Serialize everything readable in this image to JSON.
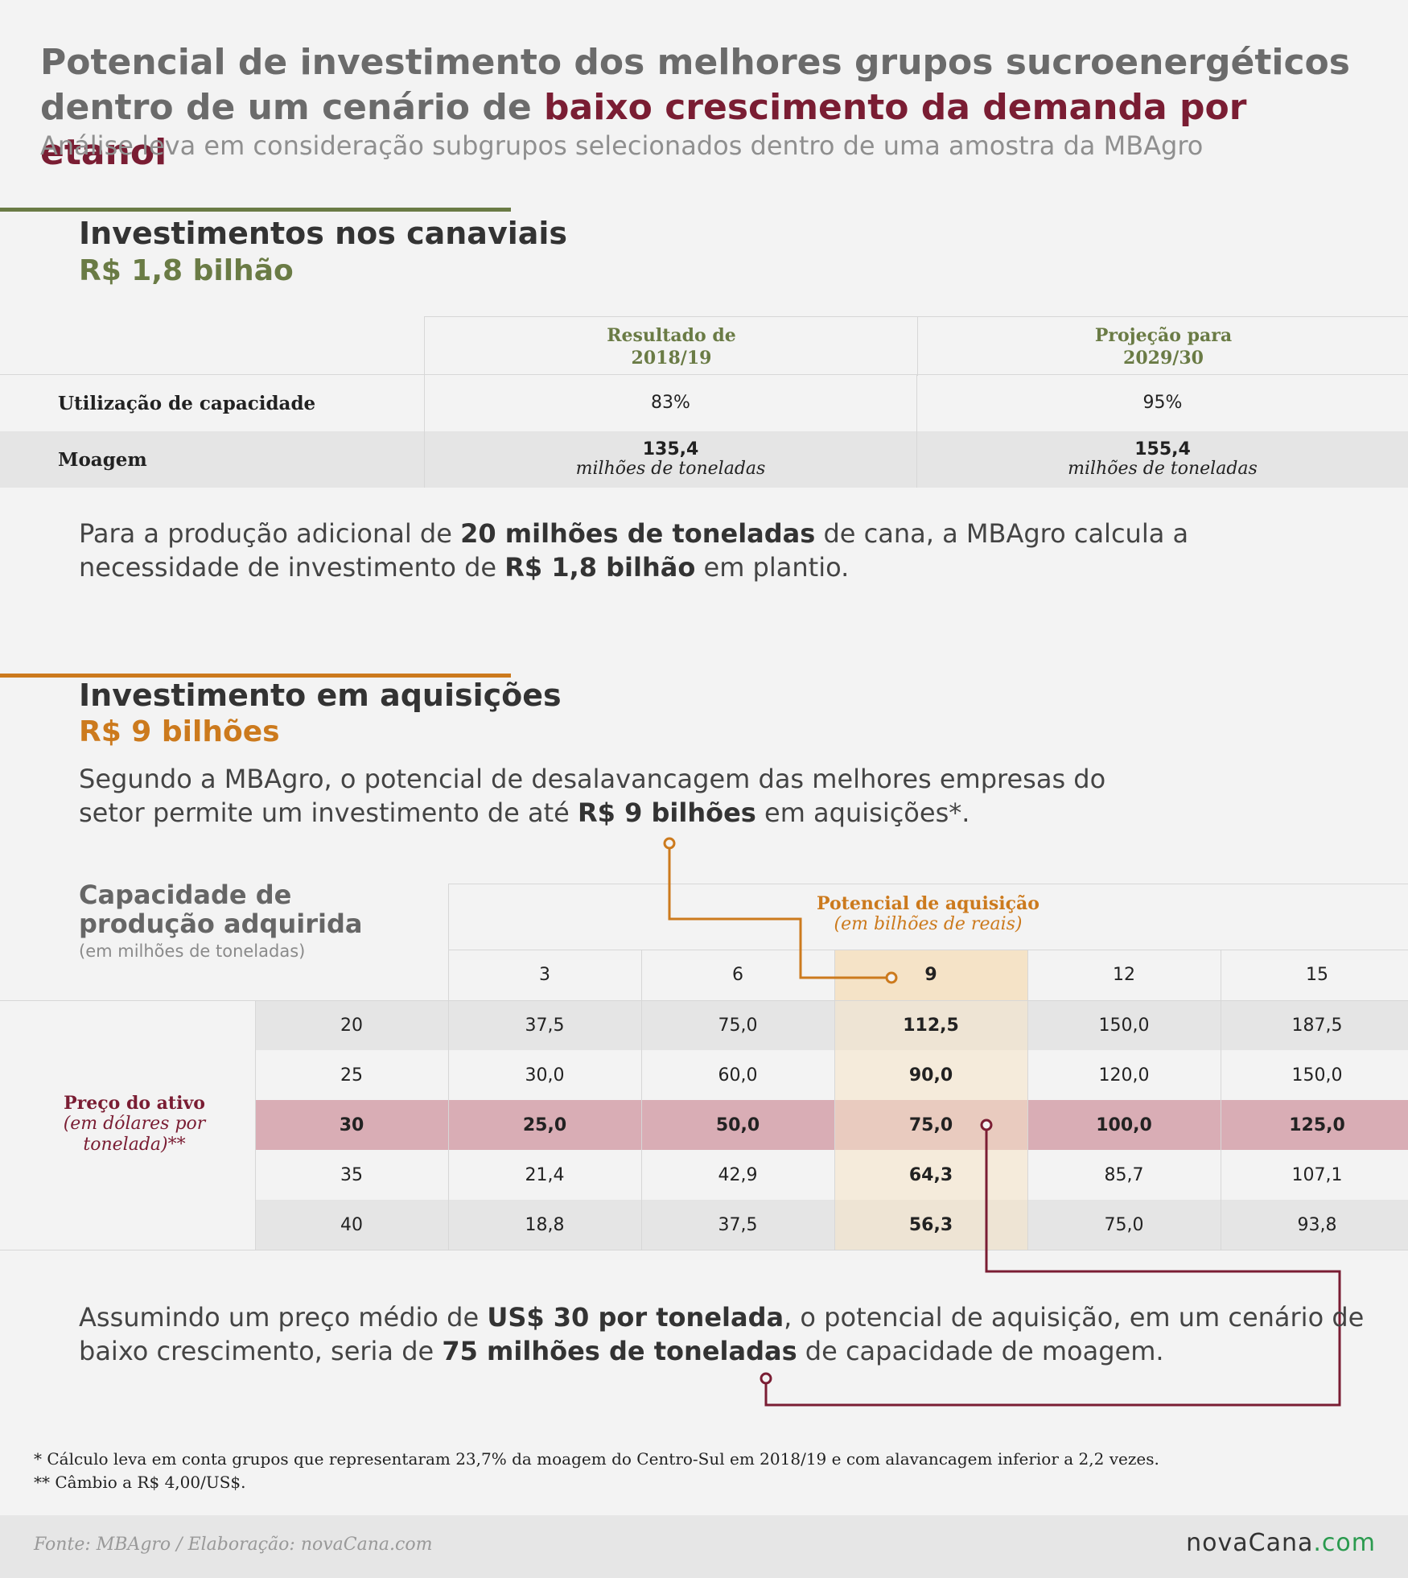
{
  "header": {
    "title_part1": "Potencial de investimento dos melhores grupos sucroenergéticos dentro de um cenário de ",
    "title_highlight": "baixo crescimento da demanda por etanol",
    "subtitle": "Análise leva em consideração subgrupos selecionados dentro de uma amostra da MBAgro"
  },
  "section1": {
    "heading": "Investimentos nos canaviais",
    "value": "R$ 1,8 bilhão",
    "table": {
      "col1": "Resultado de\n2018/19",
      "col2": "Projeção para\n2029/30",
      "row1": {
        "label": "Utilização de capacidade",
        "v1": "83%",
        "v2": "95%"
      },
      "row2": {
        "label": "Moagem",
        "v1": "135,4",
        "v2": "155,4",
        "unit": "milhões de toneladas"
      }
    },
    "paragraph": {
      "p1": "Para a produção adicional de ",
      "b1": "20 milhões de toneladas",
      "p2": " de cana, a MBAgro calcula a necessidade de investimento de ",
      "b2": "R$ 1,8 bilhão",
      "p3": " em plantio."
    }
  },
  "section2": {
    "heading": "Investimento em aquisições",
    "value": "R$ 9 bilhões",
    "paragraph": {
      "p1": "Segundo a MBAgro, o potencial de desalavancagem das melhores empresas do setor permite um investimento de até ",
      "b1": "R$ 9 bilhões",
      "p2": " em aquisições*."
    },
    "matrix": {
      "capacity_title": "Capacidade de produção adquirida",
      "capacity_unit": "(em milhões de toneladas)",
      "potential_title": "Potencial de aquisição",
      "potential_unit": "(em bilhões de reais)",
      "price_title": "Preço do ativo",
      "price_unit": "(em dólares por tonelada)**",
      "columns": [
        "3",
        "6",
        "9",
        "12",
        "15"
      ],
      "rows": [
        {
          "price": "20",
          "values": [
            "37,5",
            "75,0",
            "112,5",
            "150,0",
            "187,5"
          ]
        },
        {
          "price": "25",
          "values": [
            "30,0",
            "60,0",
            "90,0",
            "120,0",
            "150,0"
          ]
        },
        {
          "price": "30",
          "values": [
            "25,0",
            "50,0",
            "75,0",
            "100,0",
            "125,0"
          ]
        },
        {
          "price": "35",
          "values": [
            "21,4",
            "42,9",
            "64,3",
            "85,7",
            "107,1"
          ]
        },
        {
          "price": "40",
          "values": [
            "18,8",
            "37,5",
            "56,3",
            "75,0",
            "93,8"
          ]
        }
      ]
    },
    "conclusion": {
      "p1": "Assumindo um preço médio de ",
      "b1": "US$ 30 por tonelada",
      "p2": ", o potencial de aquisição, em um cenário de baixo crescimento, seria de ",
      "b2": "75 milhões de toneladas",
      "p3": " de capacidade de moagem."
    }
  },
  "footnotes": {
    "note1": " * Cálculo leva em conta grupos que representaram 23,7% da moagem do Centro-Sul em 2018/19 e com alavancagem inferior a 2,2 vezes.",
    "note2": "** Câmbio a R$ 4,00/US$."
  },
  "footer": {
    "source": "Fonte: MBAgro / Elaboração: novaCana.com",
    "logo_main": "novaCana",
    "logo_suffix": ".com"
  },
  "colors": {
    "green": "#6a7b45",
    "orange": "#cc7a1d",
    "wine": "#7a1d33",
    "rose": "#c9808c",
    "highlight_column": "#f5e3c7",
    "highlight_row": "#d9adb5"
  }
}
